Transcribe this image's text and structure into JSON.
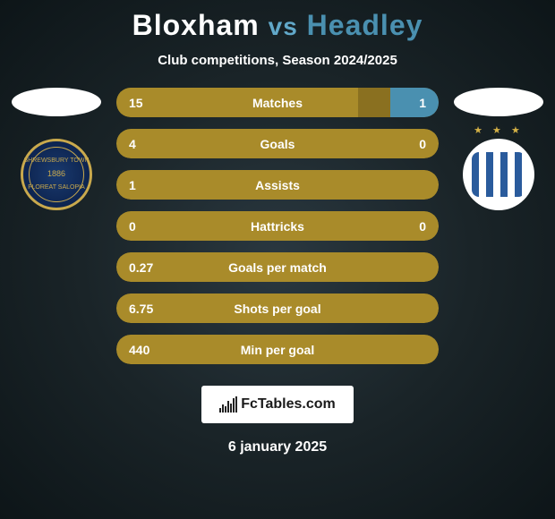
{
  "header": {
    "player1": "Bloxham",
    "vs": "vs",
    "player2": "Headley",
    "subtitle": "Club competitions, Season 2024/2025"
  },
  "colors": {
    "player1_bar": "#a98b2a",
    "player2_bar": "#4a90b0",
    "neutral_bar": "#a98b2a",
    "bg_bar": "#8a7020",
    "text": "#ffffff"
  },
  "stats": [
    {
      "label": "Matches",
      "left_val": "15",
      "right_val": "1",
      "left_pct": 75,
      "right_pct": 15,
      "full_left": false
    },
    {
      "label": "Goals",
      "left_val": "4",
      "right_val": "0",
      "left_pct": 100,
      "right_pct": 0,
      "full_left": true
    },
    {
      "label": "Assists",
      "left_val": "1",
      "right_val": "",
      "left_pct": 100,
      "right_pct": 0,
      "full_left": true
    },
    {
      "label": "Hattricks",
      "left_val": "0",
      "right_val": "0",
      "left_pct": 0,
      "right_pct": 0,
      "full_left": false
    },
    {
      "label": "Goals per match",
      "left_val": "0.27",
      "right_val": "",
      "left_pct": 100,
      "right_pct": 0,
      "full_left": true
    },
    {
      "label": "Shots per goal",
      "left_val": "6.75",
      "right_val": "",
      "left_pct": 100,
      "right_pct": 0,
      "full_left": true
    },
    {
      "label": "Min per goal",
      "left_val": "440",
      "right_val": "",
      "left_pct": 100,
      "right_pct": 0,
      "full_left": true
    }
  ],
  "crest_left": {
    "top_text": "SHREWSBURY TOWN",
    "year": "1886",
    "bottom_text": "FLOREAT SALOPIA"
  },
  "footer": {
    "logo_text": "FcTables.com",
    "date": "6 january 2025"
  }
}
